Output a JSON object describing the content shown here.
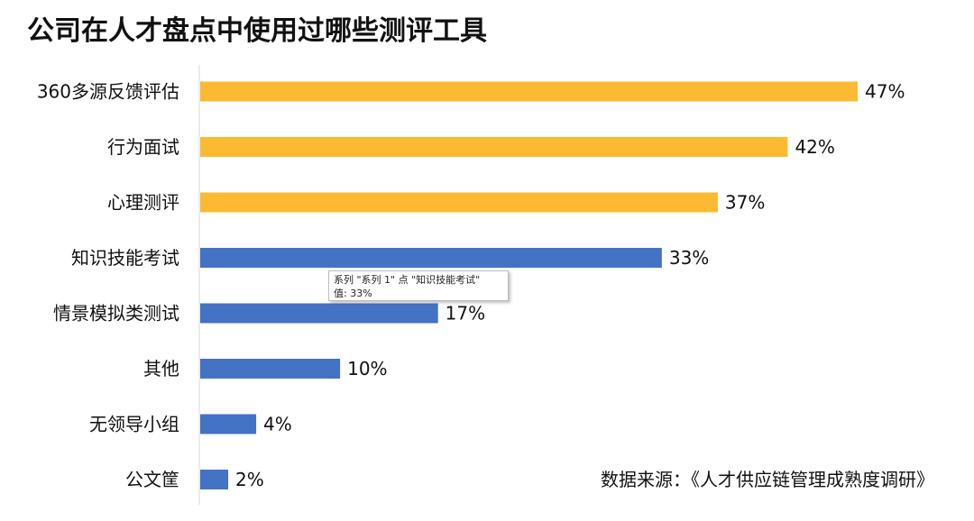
{
  "chart_data": {
    "type": "bar",
    "orientation": "horizontal",
    "title": "公司在人才盘点中使用过哪些测评工具",
    "categories": [
      "360多源反馈评估",
      "行为面试",
      "心理测评",
      "知识技能考试",
      "情景模拟类测试",
      "其他",
      "无领导小组",
      "公文筐"
    ],
    "values": [
      47,
      42,
      37,
      33,
      17,
      10,
      4,
      2
    ],
    "value_labels": [
      "47%",
      "42%",
      "37%",
      "33%",
      "17%",
      "10%",
      "4%",
      "2%"
    ],
    "bar_colors": [
      "#FBBA32",
      "#FBBA32",
      "#FBBA32",
      "#4472C4",
      "#4472C4",
      "#4472C4",
      "#4472C4",
      "#4472C4"
    ],
    "xlim": [
      0,
      47
    ],
    "xlabel": "",
    "ylabel": "",
    "grid": false,
    "legend": "none",
    "source_note": "数据来源：《人才供应链管理成熟度调研》"
  },
  "tooltip": {
    "line1": "系列 \"系列 1\" 点 \"知识技能考试\"",
    "line2": "值: 33%"
  }
}
